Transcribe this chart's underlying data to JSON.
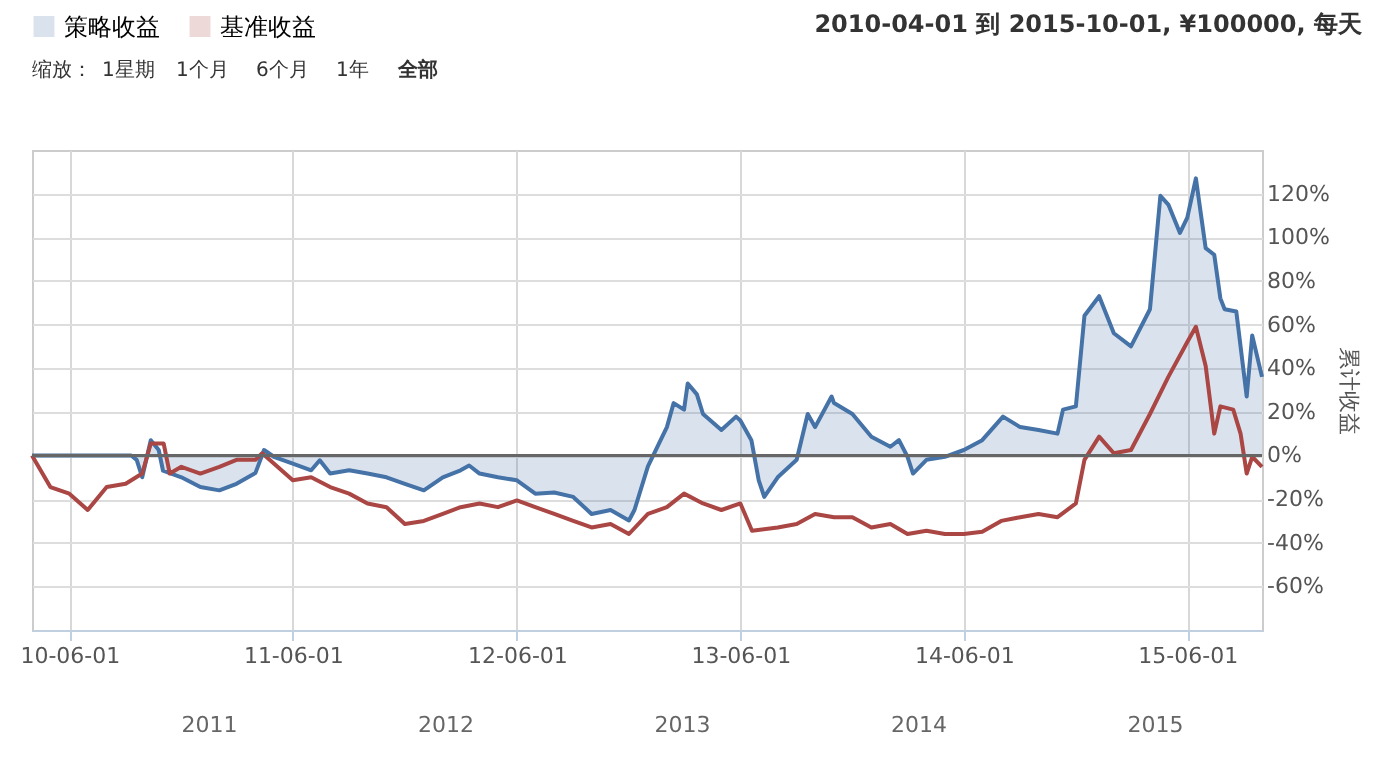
{
  "chart_data": {
    "type": "area",
    "subtitle": "2010-04-01 到 2015-10-01, ¥100000, 每天",
    "ylabel": "累计收益",
    "annotations": [
      "缩放：",
      "1星期",
      "1个月",
      "6个月",
      "1年",
      "全部",
      "2011",
      "2012",
      "2013",
      "2014",
      "2015"
    ],
    "xlim": [
      "2010-04-01",
      "2015-10-01"
    ],
    "xticks": [
      {
        "value": "2010-06-01",
        "label": "10-06-01"
      },
      {
        "value": "2011-06-01",
        "label": "11-06-01"
      },
      {
        "value": "2012-06-01",
        "label": "12-06-01"
      },
      {
        "value": "2013-06-01",
        "label": "13-06-01"
      },
      {
        "value": "2014-06-01",
        "label": "14-06-01"
      },
      {
        "value": "2015-06-01",
        "label": "15-06-01"
      }
    ],
    "ylim": [
      -80,
      140
    ],
    "yticks": [
      {
        "value": -60,
        "label": "-60%"
      },
      {
        "value": -40,
        "label": "-40%"
      },
      {
        "value": -20,
        "label": "-20%"
      },
      {
        "value": 0,
        "label": "0%"
      },
      {
        "value": 20,
        "label": "20%"
      },
      {
        "value": 40,
        "label": "40%"
      },
      {
        "value": 60,
        "label": "60%"
      },
      {
        "value": 80,
        "label": "80%"
      },
      {
        "value": 100,
        "label": "100%"
      },
      {
        "value": 120,
        "label": "120%"
      }
    ],
    "grid": true,
    "legend": "top left",
    "marker": "none",
    "line_style": "solid",
    "ref_lines": [
      {
        "axis": "y",
        "value": 0,
        "color": "#666666"
      }
    ],
    "series": [
      {
        "name": "策略收益",
        "color": "#4572a7",
        "x": [
          "2010-04-01",
          "2010-06-01",
          "2010-09-10",
          "2010-09-19",
          "2010-09-28",
          "2010-10-12",
          "2010-10-25",
          "2010-11-01",
          "2010-12-01",
          "2011-01-01",
          "2011-02-01",
          "2011-03-01",
          "2011-04-01",
          "2011-04-15",
          "2011-05-01",
          "2011-06-01",
          "2011-07-01",
          "2011-07-15",
          "2011-08-01",
          "2011-09-01",
          "2011-10-01",
          "2011-11-01",
          "2011-12-01",
          "2012-01-01",
          "2012-02-01",
          "2012-03-01",
          "2012-03-15",
          "2012-04-01",
          "2012-05-01",
          "2012-06-01",
          "2012-07-01",
          "2012-08-01",
          "2012-09-01",
          "2012-10-01",
          "2012-11-01",
          "2012-12-01",
          "2012-12-10",
          "2013-01-01",
          "2013-02-01",
          "2013-02-12",
          "2013-03-01",
          "2013-03-07",
          "2013-03-22",
          "2013-04-01",
          "2013-05-01",
          "2013-05-25",
          "2013-06-01",
          "2013-06-19",
          "2013-07-01",
          "2013-07-10",
          "2013-08-01",
          "2013-09-01",
          "2013-09-19",
          "2013-10-01",
          "2013-10-28",
          "2013-11-01",
          "2013-12-01",
          "2014-01-01",
          "2014-02-01",
          "2014-02-15",
          "2014-03-01",
          "2014-03-10",
          "2014-04-01",
          "2014-05-01",
          "2014-06-01",
          "2014-07-01",
          "2014-08-04",
          "2014-09-01",
          "2014-10-01",
          "2014-11-01",
          "2014-11-10",
          "2014-12-01",
          "2014-12-15",
          "2015-01-08",
          "2015-02-01",
          "2015-03-01",
          "2015-04-01",
          "2015-04-18",
          "2015-05-01",
          "2015-05-20",
          "2015-06-01",
          "2015-06-15",
          "2015-07-01",
          "2015-07-15",
          "2015-07-25",
          "2015-08-01",
          "2015-08-20",
          "2015-09-06",
          "2015-09-15",
          "2015-10-01"
        ],
        "values": [
          0,
          0,
          0,
          -2,
          -10,
          7,
          2.5,
          -7,
          -10,
          -14.5,
          -16,
          -13,
          -8,
          2.5,
          -0.6,
          -3.7,
          -6.8,
          -2.2,
          -8.3,
          -6.8,
          -8.3,
          -10,
          -13,
          -16,
          -10,
          -6.8,
          -4.6,
          -8.3,
          -10,
          -11.4,
          -17.5,
          -17,
          -19,
          -26.8,
          -25,
          -29.8,
          -25,
          -5,
          13,
          24,
          21,
          33,
          28,
          19,
          11.7,
          17.8,
          16,
          7,
          -11.4,
          -19,
          -10,
          -2,
          19,
          13,
          27,
          24,
          19,
          8.6,
          4,
          7,
          -0.6,
          -8.3,
          -2,
          -0.6,
          2.5,
          7,
          17.8,
          13,
          11.7,
          10,
          21,
          22.5,
          64,
          73,
          56,
          50,
          67,
          119,
          115,
          102,
          109,
          127,
          95,
          92,
          72,
          67,
          66,
          27,
          55,
          36
        ]
      },
      {
        "name": "基准收益",
        "type": "line",
        "color": "#aa4643",
        "x": [
          "2010-04-01",
          "2010-05-01",
          "2010-06-01",
          "2010-07-01",
          "2010-08-01",
          "2010-09-01",
          "2010-09-28",
          "2010-10-12",
          "2010-11-02",
          "2010-11-12",
          "2010-12-01",
          "2011-01-01",
          "2011-02-01",
          "2011-03-01",
          "2011-04-01",
          "2011-04-12",
          "2011-05-01",
          "2011-06-01",
          "2011-07-01",
          "2011-08-01",
          "2011-09-01",
          "2011-10-01",
          "2011-11-01",
          "2011-12-01",
          "2012-01-01",
          "2012-02-01",
          "2012-03-01",
          "2012-04-01",
          "2012-05-01",
          "2012-06-01",
          "2012-07-01",
          "2012-08-01",
          "2012-09-01",
          "2012-10-01",
          "2012-11-01",
          "2012-12-01",
          "2013-01-01",
          "2013-02-01",
          "2013-03-01",
          "2013-04-01",
          "2013-05-01",
          "2013-06-01",
          "2013-06-20",
          "2013-08-01",
          "2013-09-01",
          "2013-10-01",
          "2013-11-01",
          "2013-12-01",
          "2014-01-01",
          "2014-02-01",
          "2014-03-01",
          "2014-04-01",
          "2014-05-01",
          "2014-06-01",
          "2014-07-01",
          "2014-08-01",
          "2014-09-01",
          "2014-10-01",
          "2014-11-01",
          "2014-12-01",
          "2014-12-15",
          "2015-01-08",
          "2015-02-01",
          "2015-03-01",
          "2015-04-01",
          "2015-05-01",
          "2015-06-01",
          "2015-06-15",
          "2015-07-01",
          "2015-07-15",
          "2015-07-25",
          "2015-08-15",
          "2015-08-27",
          "2015-09-06",
          "2015-09-15",
          "2015-10-01"
        ],
        "values": [
          0,
          -14.5,
          -17.5,
          -25,
          -14.5,
          -13,
          -8.3,
          5.5,
          5.5,
          -8.3,
          -5.2,
          -8.3,
          -5.2,
          -2,
          -2,
          1,
          -3.7,
          -11.4,
          -10,
          -14.5,
          -17.5,
          -22,
          -23.7,
          -31.4,
          -30,
          -26.8,
          -23.7,
          -22,
          -23.7,
          -20.6,
          -23.7,
          -26.8,
          -30,
          -33,
          -31.4,
          -36,
          -26.8,
          -23.7,
          -17.5,
          -22,
          -25,
          -22,
          -34.5,
          -33,
          -31.4,
          -26.8,
          -28.3,
          -28.3,
          -33,
          -31.4,
          -36,
          -34.5,
          -36,
          -36,
          -35,
          -30,
          -28.3,
          -26.8,
          -28.3,
          -22,
          -2,
          8.6,
          1,
          2.5,
          19,
          36,
          52,
          59,
          41,
          10,
          22.5,
          21,
          10,
          -8.3,
          -0.6,
          -5.2
        ]
      }
    ]
  }
}
